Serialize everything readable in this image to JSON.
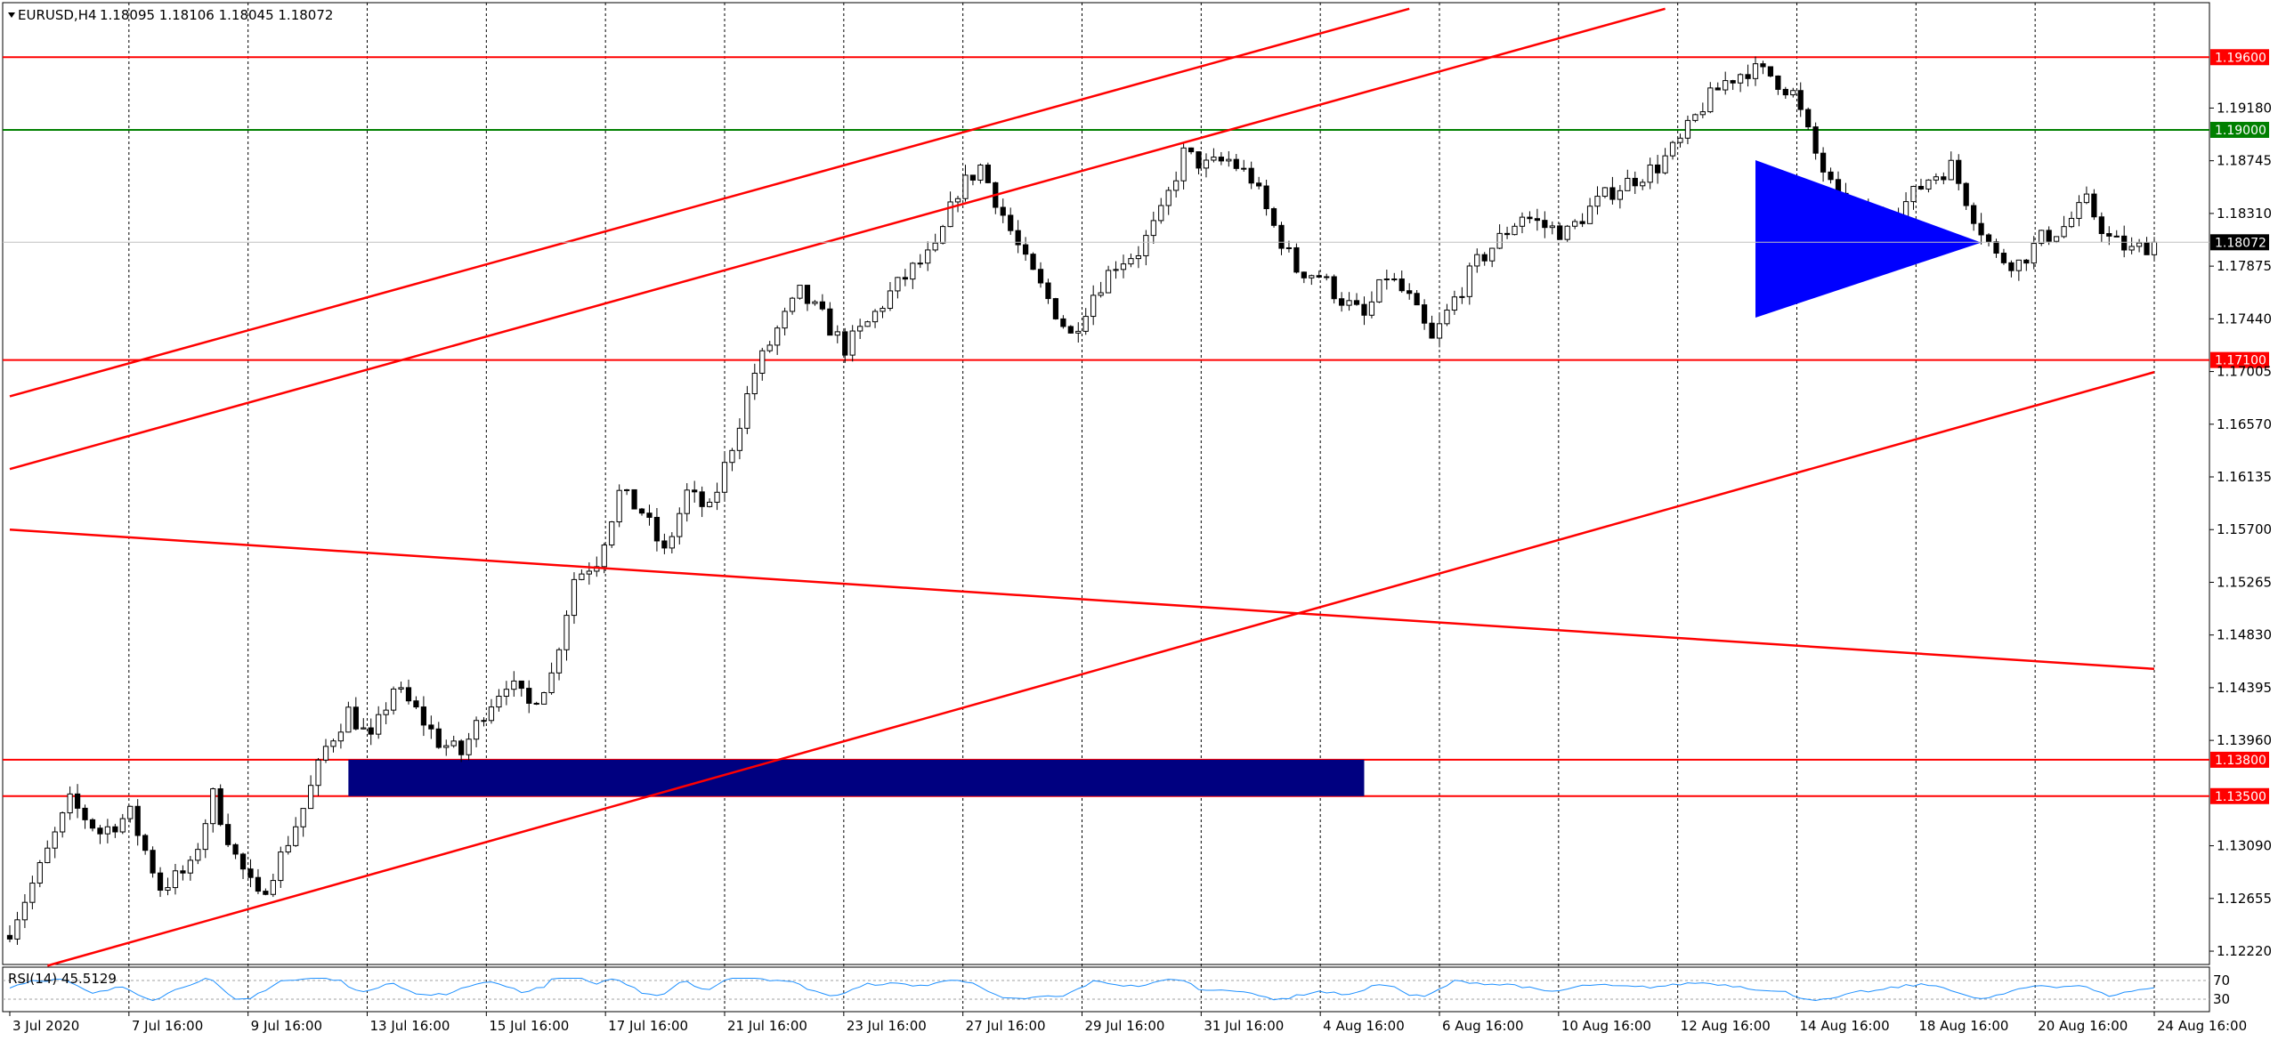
{
  "header": {
    "symbol": "EURUSD,H4",
    "ohlc": "1.18095 1.18106 1.18045 1.18072"
  },
  "rsi": {
    "label": "RSI(14) 45.5129",
    "levels": [
      "70",
      "30"
    ]
  },
  "colors": {
    "bull": "#ffffff",
    "bear": "#000000",
    "red_line": "#ff0000",
    "green_line": "#008000",
    "zone": "#000080",
    "triangle": "#0000ff",
    "price_tag": "#000000",
    "rsi_line": "#1e90ff"
  },
  "chart_data": {
    "type": "candlestick",
    "timeframe": "H4",
    "y_ticks": [
      "1.19180",
      "1.18745",
      "1.18310",
      "1.17875",
      "1.17440",
      "1.17005",
      "1.16570",
      "1.16135",
      "1.15700",
      "1.15265",
      "1.14830",
      "1.14395",
      "1.13960",
      "1.13090",
      "1.12655",
      "1.12220"
    ],
    "x_ticks": [
      "3 Jul 2020",
      "7 Jul 16:00",
      "9 Jul 16:00",
      "13 Jul 16:00",
      "15 Jul 16:00",
      "17 Jul 16:00",
      "21 Jul 16:00",
      "23 Jul 16:00",
      "27 Jul 16:00",
      "29 Jul 16:00",
      "31 Jul 16:00",
      "4 Aug 16:00",
      "6 Aug 16:00",
      "10 Aug 16:00",
      "12 Aug 16:00",
      "14 Aug 16:00",
      "18 Aug 16:00",
      "20 Aug 16:00",
      "24 Aug 16:00"
    ],
    "close_path": [
      [
        0,
        1.124
      ],
      [
        4,
        1.129
      ],
      [
        8,
        1.1345
      ],
      [
        12,
        1.132
      ],
      [
        16,
        1.1335
      ],
      [
        20,
        1.1275
      ],
      [
        24,
        1.129
      ],
      [
        27,
        1.135
      ],
      [
        30,
        1.13
      ],
      [
        33,
        1.1265
      ],
      [
        36,
        1.13
      ],
      [
        39,
        1.134
      ],
      [
        42,
        1.139
      ],
      [
        45,
        1.142
      ],
      [
        48,
        1.1395
      ],
      [
        51,
        1.144
      ],
      [
        54,
        1.142
      ],
      [
        57,
        1.1395
      ],
      [
        60,
        1.1385
      ],
      [
        63,
        1.142
      ],
      [
        66,
        1.1445
      ],
      [
        69,
        1.1425
      ],
      [
        72,
        1.145
      ],
      [
        75,
        1.153
      ],
      [
        78,
        1.1545
      ],
      [
        81,
        1.16
      ],
      [
        84,
        1.1585
      ],
      [
        87,
        1.155
      ],
      [
        90,
        1.16
      ],
      [
        93,
        1.1585
      ],
      [
        96,
        1.164
      ],
      [
        99,
        1.17
      ],
      [
        102,
        1.1735
      ],
      [
        105,
        1.1765
      ],
      [
        108,
        1.1745
      ],
      [
        111,
        1.172
      ],
      [
        114,
        1.174
      ],
      [
        117,
        1.1765
      ],
      [
        120,
        1.1785
      ],
      [
        123,
        1.18
      ],
      [
        126,
        1.185
      ],
      [
        129,
        1.187
      ],
      [
        132,
        1.183
      ],
      [
        135,
        1.179
      ],
      [
        138,
        1.176
      ],
      [
        141,
        1.173
      ],
      [
        144,
        1.1765
      ],
      [
        147,
        1.179
      ],
      [
        150,
        1.18
      ],
      [
        153,
        1.183
      ],
      [
        156,
        1.188
      ],
      [
        159,
        1.187
      ],
      [
        162,
        1.1875
      ],
      [
        165,
        1.186
      ],
      [
        168,
        1.182
      ],
      [
        171,
        1.1785
      ],
      [
        174,
        1.178
      ],
      [
        177,
        1.176
      ],
      [
        180,
        1.1745
      ],
      [
        183,
        1.178
      ],
      [
        186,
        1.176
      ],
      [
        189,
        1.1725
      ],
      [
        192,
        1.176
      ],
      [
        195,
        1.179
      ],
      [
        198,
        1.181
      ],
      [
        201,
        1.183
      ],
      [
        204,
        1.182
      ],
      [
        207,
        1.1815
      ],
      [
        210,
        1.1835
      ],
      [
        213,
        1.185
      ],
      [
        216,
        1.186
      ],
      [
        219,
        1.187
      ],
      [
        222,
        1.189
      ],
      [
        225,
        1.192
      ],
      [
        228,
        1.194
      ],
      [
        231,
        1.195
      ],
      [
        234,
        1.1945
      ],
      [
        237,
        1.193
      ],
      [
        240,
        1.188
      ],
      [
        243,
        1.184
      ],
      [
        246,
        1.183
      ],
      [
        249,
        1.1825
      ],
      [
        252,
        1.184
      ],
      [
        255,
        1.186
      ],
      [
        258,
        1.187
      ],
      [
        261,
        1.183
      ],
      [
        264,
        1.1795
      ],
      [
        267,
        1.179
      ],
      [
        270,
        1.181
      ],
      [
        273,
        1.182
      ],
      [
        276,
        1.184
      ],
      [
        279,
        1.181
      ],
      [
        282,
        1.18
      ],
      [
        285,
        1.1807
      ]
    ],
    "horizontal_levels": [
      {
        "price": 1.196,
        "label": "1.19600",
        "color": "red"
      },
      {
        "price": 1.19,
        "label": "1.19000",
        "color": "green"
      },
      {
        "price": 1.171,
        "label": "1.17100",
        "color": "red"
      },
      {
        "price": 1.138,
        "label": "1.13800",
        "color": "red"
      },
      {
        "price": 1.135,
        "label": "1.13500",
        "color": "red"
      }
    ],
    "current_price": {
      "price": 1.18072,
      "label": "1.18072"
    },
    "demand_zone": {
      "from_bar": 45,
      "to_bar": 180,
      "low": 1.135,
      "high": 1.138
    },
    "trend_lines": [
      {
        "from": [
          0,
          1.168
        ],
        "to": [
          186,
          1.2
        ]
      },
      {
        "from": [
          0,
          1.162
        ],
        "to": [
          220,
          1.2
        ]
      },
      {
        "from": [
          0,
          1.157
        ],
        "to": [
          285,
          1.1455
        ]
      },
      {
        "from": [
          5,
          1.121
        ],
        "to": [
          285,
          1.17
        ]
      }
    ],
    "triangle": {
      "apex_bar": 262,
      "apex_price": 1.1807,
      "base_bar": 232,
      "base_top": 1.1875,
      "base_bottom": 1.1745
    },
    "y_range": [
      1.1211,
      1.2005
    ],
    "bars_visible": 286
  }
}
